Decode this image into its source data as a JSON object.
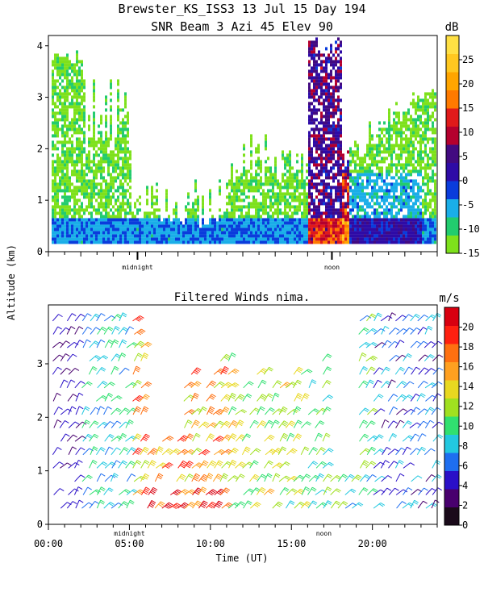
{
  "chart_data": [
    {
      "type": "heatmap",
      "title": "Brewster_KS_ISS3  13 Jul 15 Day 194",
      "subtitle": "SNR Beam 3 Azi  45 Elev 90",
      "ylabel": "Altitude (km)",
      "ylim": [
        0,
        4.2
      ],
      "yticks": [
        0,
        1,
        2,
        3,
        4
      ],
      "xlim": [
        0,
        24
      ],
      "time_markers": [
        {
          "label": "midnight",
          "hour": 5.5
        },
        {
          "label": "noon",
          "hour": 17.5
        }
      ],
      "colorbar": {
        "unit": "dB",
        "range": [
          -15,
          30
        ],
        "tick_labels": [
          "25",
          "20",
          "15",
          "10",
          "5",
          "0",
          "-5",
          "-10",
          "-15"
        ],
        "tick_values": [
          25,
          20,
          15,
          10,
          5,
          0,
          -5,
          -10,
          -15
        ],
        "colors": [
          "#7ee11c",
          "#22cc6e",
          "#1aaee8",
          "#0a3cdc",
          "#2e0ba6",
          "#420a80",
          "#b4002e",
          "#e01a1a",
          "#ff7a00",
          "#ffa500",
          "#ffc820",
          "#ffe044"
        ]
      }
    },
    {
      "type": "wind-barbs",
      "title": "Filtered Winds nima.",
      "xlabel": "Time (UT)",
      "ylim": [
        0,
        4.1
      ],
      "yticks": [
        0,
        1,
        2,
        3
      ],
      "xlim": [
        0,
        24
      ],
      "xtick_labels": [
        "00:00",
        "05:00",
        "10:00",
        "15:00",
        "20:00"
      ],
      "xtick_values": [
        0,
        5,
        10,
        15,
        20
      ],
      "time_markers": [
        {
          "label": "midnight",
          "hour": 5
        },
        {
          "label": "noon",
          "hour": 17
        }
      ],
      "colorbar": {
        "unit": "m/s",
        "range": [
          0,
          22
        ],
        "tick_labels": [
          "20",
          "18",
          "16",
          "14",
          "12",
          "10",
          "8",
          "6",
          "4",
          "2",
          "0"
        ],
        "tick_values": [
          20,
          18,
          16,
          14,
          12,
          10,
          8,
          6,
          4,
          2,
          0
        ],
        "colors": [
          "#1a0a1a",
          "#48006e",
          "#2a10c8",
          "#1e6ef0",
          "#22c8e0",
          "#30e070",
          "#a0e020",
          "#e8d820",
          "#ffa020",
          "#ff7010",
          "#ff2010",
          "#d80010"
        ]
      }
    }
  ]
}
